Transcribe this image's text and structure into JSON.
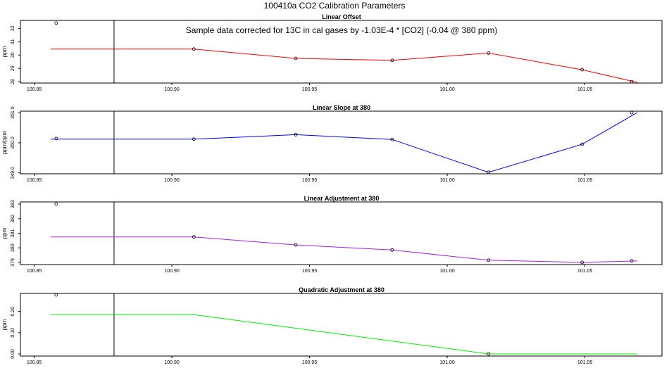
{
  "title": "100410a   CO2 Calibration Parameters",
  "annotation": "Sample data corrected for 13C in cal gases by -1.03E-4 * [CO2] (-0.04 @ 380 ppm)",
  "colors": {
    "offset": "#ff0000",
    "slope": "#0000ff",
    "adjustment": "#a020f0",
    "quadratic": "#00ee00"
  },
  "chart_data": [
    {
      "type": "line",
      "title": "Linear Offset",
      "ylabel": "ppm",
      "xlim": [
        100.845,
        101.078
      ],
      "ylim": [
        27.9,
        32.6
      ],
      "x_ticks": [
        "100.85",
        "100.90",
        "100.95",
        "101.00",
        "101.05"
      ],
      "x_tick_values": [
        100.85,
        100.9,
        100.95,
        101.0,
        101.05
      ],
      "y_ticks": [
        "28",
        "29",
        "30",
        "31",
        "32"
      ],
      "y_tick_values": [
        28,
        29,
        30,
        31,
        32
      ],
      "marker_x": 100.879,
      "line": {
        "x": [
          100.856,
          100.908,
          100.945,
          100.98,
          101.015,
          101.049,
          101.069
        ],
        "y": [
          30.45,
          30.45,
          29.75,
          29.6,
          30.15,
          28.9,
          27.95
        ]
      },
      "points": {
        "x": [
          100.858,
          100.908,
          100.945,
          100.98,
          101.015,
          101.049,
          101.067
        ],
        "y": [
          32.4,
          30.45,
          29.75,
          29.6,
          30.15,
          28.9,
          28.0
        ]
      }
    },
    {
      "type": "line",
      "title": "Linear Slope at 380",
      "ylabel": "ppm/ppm",
      "xlim": [
        100.845,
        101.078
      ],
      "ylim": [
        348.97,
        351.05
      ],
      "x_ticks": [
        "100.85",
        "100.90",
        "100.95",
        "101.00",
        "101.05"
      ],
      "x_tick_values": [
        100.85,
        100.9,
        100.95,
        101.0,
        101.05
      ],
      "y_ticks": [
        "349.0",
        "350.0",
        "351.0"
      ],
      "y_tick_values": [
        349.0,
        350.0,
        351.0
      ],
      "marker_x": 100.879,
      "line": {
        "x": [
          100.856,
          100.908,
          100.945,
          100.98,
          101.015,
          101.049,
          101.069
        ],
        "y": [
          350.12,
          350.12,
          350.27,
          350.11,
          349.02,
          349.95,
          351.0
        ]
      },
      "points": {
        "x": [
          100.858,
          100.908,
          100.945,
          100.98,
          101.015,
          101.049,
          101.067
        ],
        "y": [
          350.14,
          350.12,
          350.27,
          350.11,
          349.02,
          349.95,
          351.0
        ]
      }
    },
    {
      "type": "line",
      "title": "Linear Adjustment at 380",
      "ylabel": "ppm",
      "xlim": [
        100.845,
        101.078
      ],
      "ylim": [
        378.85,
        383.15
      ],
      "x_ticks": [
        "100.85",
        "100.90",
        "100.95",
        "101.00",
        "101.05"
      ],
      "x_tick_values": [
        100.85,
        100.9,
        100.95,
        101.0,
        101.05
      ],
      "y_ticks": [
        "379",
        "380",
        "381",
        "382",
        "383"
      ],
      "y_tick_values": [
        379,
        380,
        381,
        382,
        383
      ],
      "marker_x": 100.879,
      "line": {
        "x": [
          100.856,
          100.908,
          100.945,
          100.98,
          101.015,
          101.049,
          101.069
        ],
        "y": [
          380.75,
          380.75,
          380.2,
          379.85,
          379.15,
          379.0,
          379.1
        ]
      },
      "points": {
        "x": [
          100.858,
          100.908,
          100.945,
          100.98,
          101.015,
          101.049,
          101.067
        ],
        "y": [
          383.0,
          380.75,
          380.2,
          379.85,
          379.15,
          379.0,
          379.1
        ]
      }
    },
    {
      "type": "line",
      "title": "Quadratic Adjustment at 380",
      "ylabel": "ppm",
      "xlim": [
        100.845,
        101.078
      ],
      "ylim": [
        -0.01,
        0.285
      ],
      "x_ticks": [
        "100.85",
        "100.90",
        "100.95",
        "101.00",
        "101.05"
      ],
      "x_tick_values": [
        100.85,
        100.9,
        100.95,
        101.0,
        101.05
      ],
      "y_ticks": [
        "0.00",
        "0.10",
        "0.20"
      ],
      "y_tick_values": [
        0.0,
        0.1,
        0.2
      ],
      "marker_x": 100.879,
      "line": {
        "x": [
          100.856,
          100.908,
          101.015,
          101.069
        ],
        "y": [
          0.185,
          0.185,
          0.0,
          0.0
        ]
      },
      "points": {
        "x": [
          100.858,
          101.015
        ],
        "y": [
          0.278,
          0.0
        ]
      }
    }
  ]
}
